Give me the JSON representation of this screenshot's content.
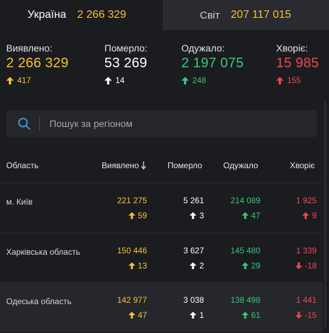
{
  "tabs": [
    {
      "name": "Україна",
      "value": "2 266 329"
    },
    {
      "name": "Світ",
      "value": "207 117 015"
    }
  ],
  "stats": [
    {
      "label": "Виявлено:",
      "value": "2 266 329",
      "delta": "417",
      "color": "#f5c236",
      "arrow": "up"
    },
    {
      "label": "Померло:",
      "value": "53 269",
      "delta": "14",
      "color": "#ffffff",
      "arrow": "up"
    },
    {
      "label": "Одужало:",
      "value": "2 197 075",
      "delta": "248",
      "color": "#35c87a",
      "arrow": "up"
    },
    {
      "label": "Хворіє:",
      "value": "15 985",
      "delta": "155",
      "color": "#f0474f",
      "arrow": "up"
    }
  ],
  "search": {
    "placeholder": "Пошук за регіоном"
  },
  "table": {
    "headers": {
      "region": "Область",
      "confirmed": "Виявлено",
      "deaths": "Померло",
      "recovered": "Одужало",
      "sick": "Хворіє"
    },
    "rows": [
      {
        "region": "м. Київ",
        "confirmed": "221 275",
        "confirmed_d": "59",
        "deaths": "5 261",
        "deaths_d": "3",
        "recovered": "214 089",
        "recovered_d": "47",
        "sick": "1 925",
        "sick_d": "9",
        "sick_dir": "up"
      },
      {
        "region": "Харківська область",
        "confirmed": "150 446",
        "confirmed_d": "13",
        "deaths": "3 627",
        "deaths_d": "2",
        "recovered": "145 480",
        "recovered_d": "29",
        "sick": "1 339",
        "sick_d": "-18",
        "sick_dir": "down"
      },
      {
        "region": "Одеська область",
        "confirmed": "142 977",
        "confirmed_d": "47",
        "deaths": "3 038",
        "deaths_d": "1",
        "recovered": "138 498",
        "recovered_d": "61",
        "sick": "1 441",
        "sick_d": "-15",
        "sick_dir": "down"
      }
    ]
  },
  "colors": {
    "confirmed": "#f5c236",
    "deaths": "#ffffff",
    "recovered": "#35c87a",
    "sick": "#f0474f"
  }
}
